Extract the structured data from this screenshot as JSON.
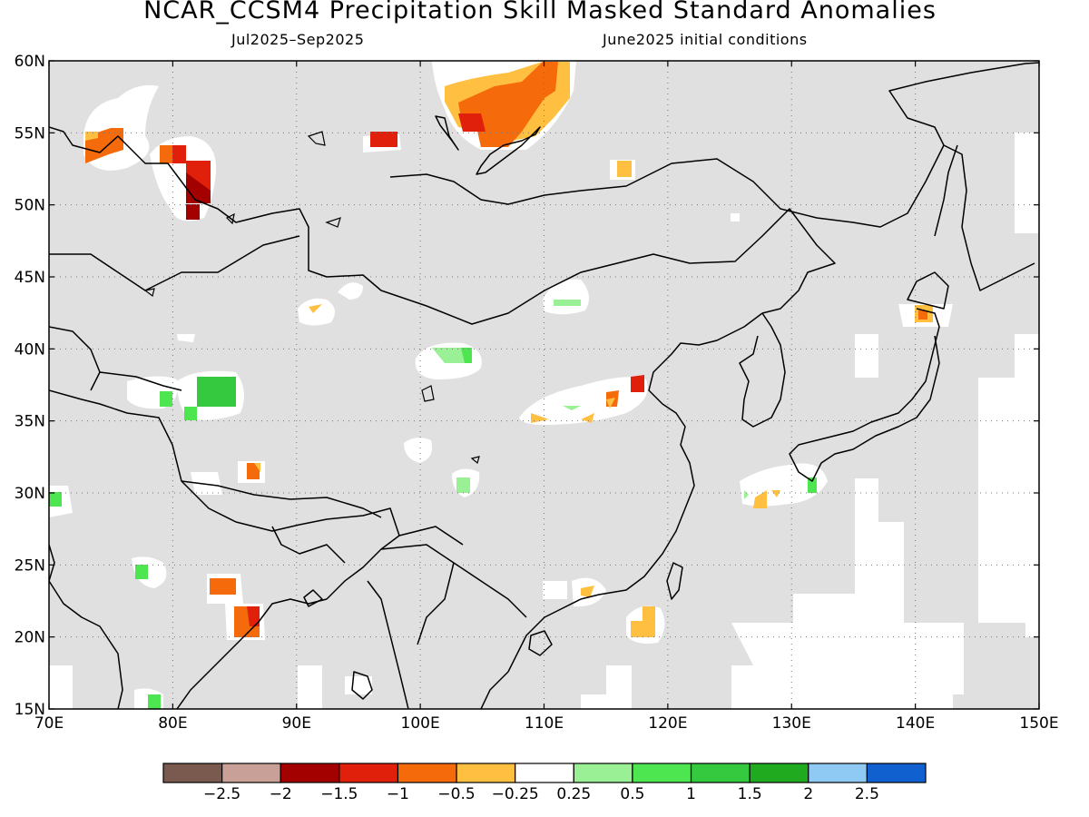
{
  "title": "NCAR_CCSM4 Precipitation Skill Masked Standard Anomalies",
  "subtitle_left": "Jul2025–Sep2025",
  "subtitle_right": "June2025 initial conditions",
  "map": {
    "lon_range": [
      70,
      150
    ],
    "lat_range": [
      15,
      60
    ],
    "lon_ticks": [
      "70E",
      "80E",
      "90E",
      "100E",
      "110E",
      "120E",
      "130E",
      "140E",
      "150E"
    ],
    "lat_ticks": [
      "15N",
      "20N",
      "25N",
      "30N",
      "35N",
      "40N",
      "45N",
      "50N",
      "55N",
      "60N"
    ],
    "gridlines": true,
    "masked_color": "#e0e0e0"
  },
  "colorbar": {
    "colors": [
      "#7a5a4f",
      "#c8a097",
      "#a30000",
      "#e0200a",
      "#f56a0a",
      "#ffbf40",
      "#ffffff",
      "#9af095",
      "#4ee650",
      "#35c940",
      "#1faa20",
      "#8fcaf4",
      "#1060d0"
    ],
    "labels": [
      "−2.5",
      "−2",
      "−1.5",
      "−1",
      "−0.5",
      "−0.25",
      "0.25",
      "0.5",
      "1",
      "1.5",
      "2",
      "2.5"
    ]
  }
}
